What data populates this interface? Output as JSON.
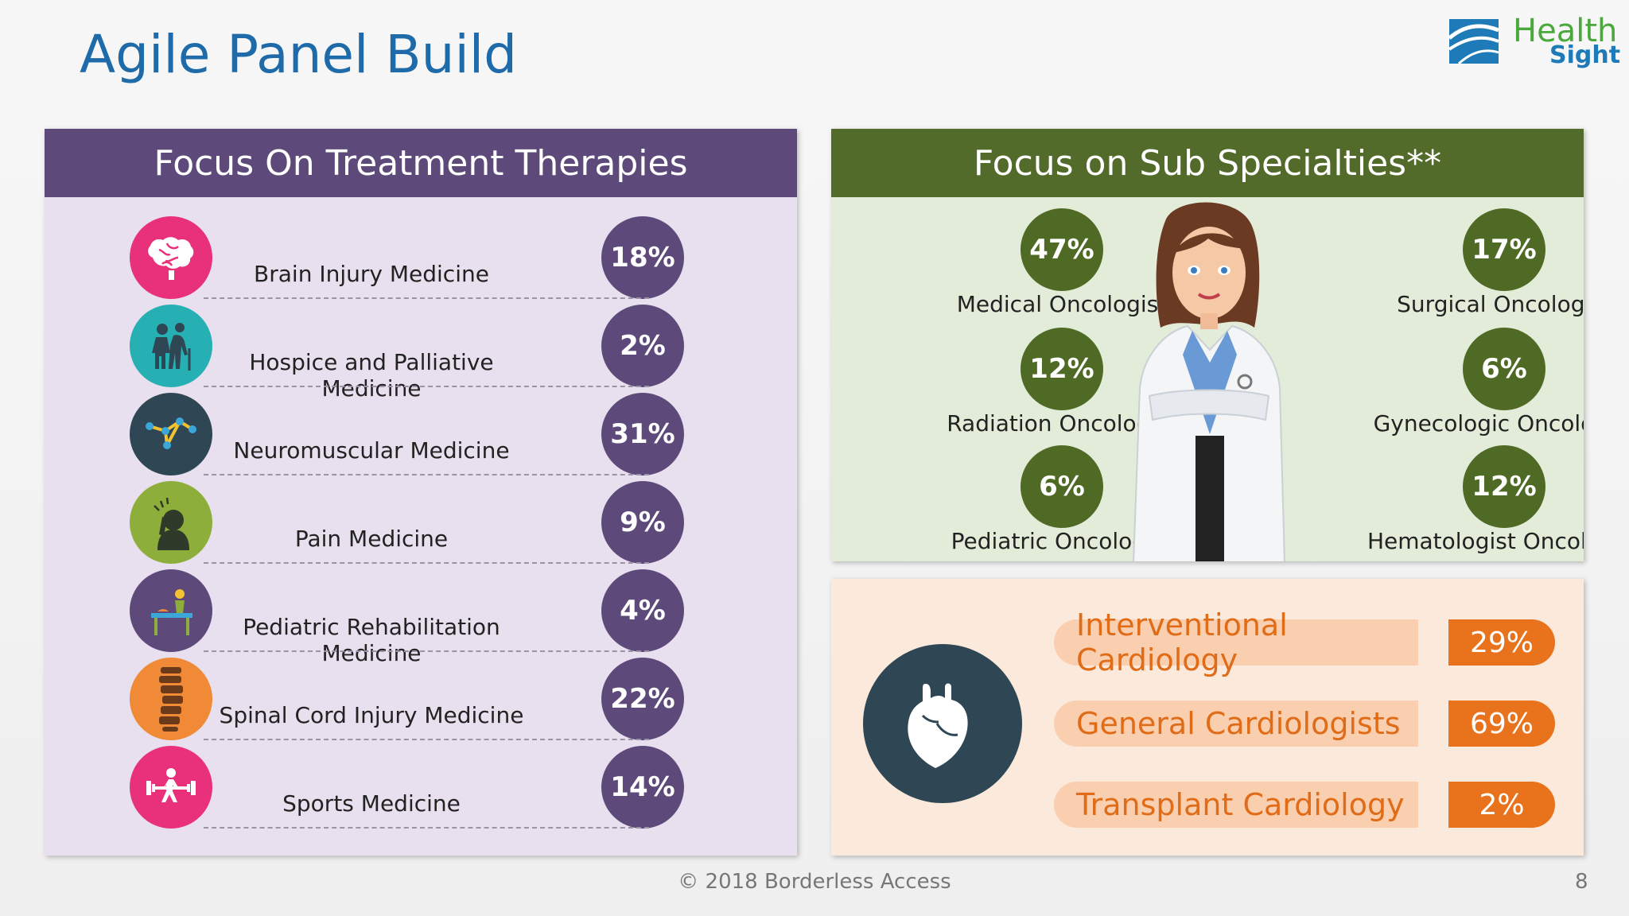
{
  "title": "Agile Panel Build",
  "logo": {
    "line1": "Health",
    "line2": "Sight"
  },
  "therapies": {
    "heading": "Focus On Treatment Therapies",
    "items": [
      {
        "label": "Brain Injury Medicine",
        "pct": "18%",
        "icon": "brain-icon",
        "color": "#e8317a"
      },
      {
        "label": "Hospice and Palliative Medicine",
        "pct": "2%",
        "icon": "elderly-couple-icon",
        "color": "#27b0b3"
      },
      {
        "label": "Neuromuscular Medicine",
        "pct": "31%",
        "icon": "network-nodes-icon",
        "color": "#2f4654"
      },
      {
        "label": "Pain Medicine",
        "pct": "9%",
        "icon": "headache-person-icon",
        "color": "#8dae3a"
      },
      {
        "label": "Pediatric Rehabilitation Medicine",
        "pct": "4%",
        "icon": "rehab-therapy-icon",
        "color": "#5e4a7a"
      },
      {
        "label": "Spinal Cord Injury Medicine",
        "pct": "22%",
        "icon": "spine-icon",
        "color": "#f08a36"
      },
      {
        "label": "Sports Medicine",
        "pct": "14%",
        "icon": "weightlifter-icon",
        "color": "#e8317a"
      }
    ]
  },
  "subspecialties": {
    "heading": "Focus on Sub Specialties**",
    "left": [
      {
        "pct": "47%",
        "label": "Medical Oncologist"
      },
      {
        "pct": "12%",
        "label": "Radiation Oncologist"
      },
      {
        "pct": "6%",
        "label": "Pediatric Oncologist"
      }
    ],
    "right": [
      {
        "pct": "17%",
        "label": "Surgical Oncologist"
      },
      {
        "pct": "6%",
        "label": "Gynecologic Oncologist"
      },
      {
        "pct": "12%",
        "label": "Hematologist Oncologist"
      }
    ]
  },
  "cardiology": {
    "items": [
      {
        "label": "Interventional Cardiology",
        "pct": "29%"
      },
      {
        "label": "General Cardiologists",
        "pct": "69%"
      },
      {
        "label": "Transplant Cardiology",
        "pct": "2%"
      }
    ]
  },
  "footer": "© 2018 Borderless Access",
  "page_number": "8"
}
